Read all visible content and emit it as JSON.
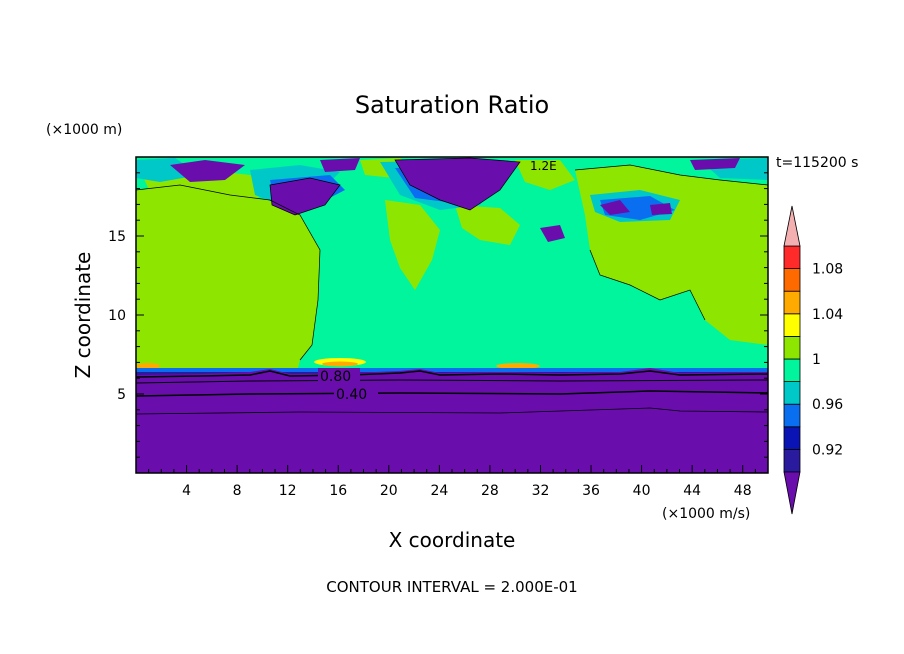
{
  "chart_data": {
    "type": "heatmap",
    "title": "Saturation Ratio",
    "xlabel": "X coordinate",
    "ylabel": "Z coordinate",
    "x_unit": "(×1000 m/s)",
    "y_unit": "(×1000 m)",
    "time_label": "t=115200 s",
    "footer": "CONTOUR INTERVAL = 2.000E-01",
    "xlim": [
      0,
      50
    ],
    "ylim": [
      0,
      20
    ],
    "x_ticks": [
      4,
      8,
      12,
      16,
      20,
      24,
      28,
      32,
      36,
      40,
      44,
      48
    ],
    "y_ticks": [
      5,
      10,
      15
    ],
    "contour_labels": [
      "0.80",
      "0.40",
      "1.2E"
    ],
    "colorbar": {
      "levels": [
        0.9,
        0.92,
        0.94,
        0.96,
        0.98,
        1.0,
        1.02,
        1.04,
        1.06,
        1.08,
        1.1
      ],
      "labels": [
        "0.92",
        "0.96",
        "1",
        "1.04",
        "1.08"
      ],
      "colors": [
        "#6a0dad",
        "#2a1a9e",
        "#0a14b4",
        "#0a6ef0",
        "#00c8c8",
        "#00f59c",
        "#8ee600",
        "#ffff00",
        "#ffaa00",
        "#ff6a00",
        "#ff2a2a",
        "#f4b0b0"
      ]
    },
    "regions": {
      "lower_layer_top_z": 6.4,
      "lower_layer_value": "< 0.92",
      "mid_layer_value": "0.98 - 1.02",
      "upper_value": "< 0.92 patches near top"
    }
  }
}
